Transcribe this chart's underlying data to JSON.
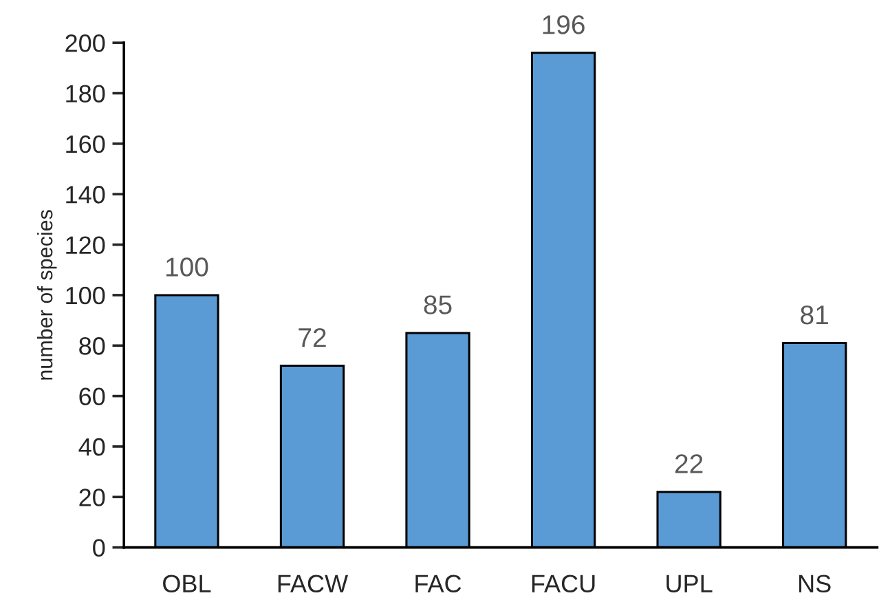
{
  "chart_data": {
    "type": "bar",
    "ylabel": "number of species",
    "categories": [
      "OBL",
      "FACW",
      "FAC",
      "FACU",
      "UPL",
      "NS"
    ],
    "values": [
      100,
      72,
      85,
      196,
      22,
      81
    ],
    "color": "#5b9bd5",
    "ylim": [
      0,
      200
    ],
    "yticks": [
      0,
      20,
      40,
      60,
      80,
      100,
      120,
      140,
      160,
      180,
      200
    ],
    "data_labels": true
  }
}
